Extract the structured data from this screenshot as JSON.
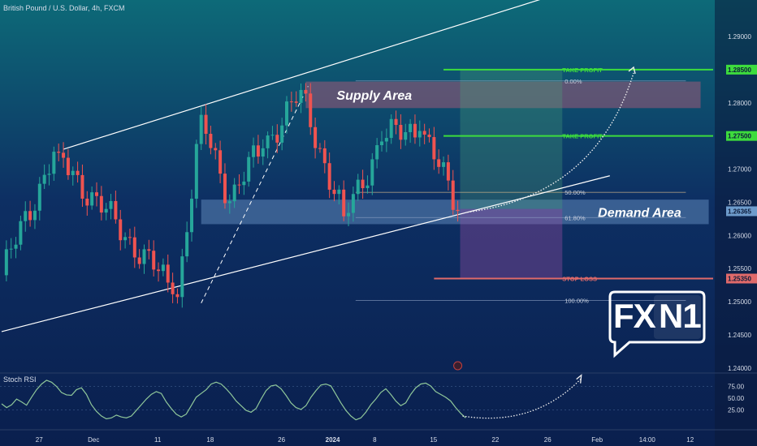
{
  "header": {
    "symbol": "British Pound / U.S. Dollar, 4h, FXCM"
  },
  "indicator": {
    "name": "Stoch RSI"
  },
  "logo": {
    "part1": "FX",
    "part2": "N1"
  },
  "colors": {
    "background": "#0b1a3a",
    "candle_up": "#26a69a",
    "candle_down": "#ef5350",
    "take_profit": "#3ddc3d",
    "stop_loss": "#e06a6a",
    "supply_zone": "#a05a78",
    "demand_zone": "#6e9ccc",
    "stoch_line": "#8fc79a",
    "channel": "#ffffff"
  },
  "chart_data": {
    "type": "candlestick",
    "symbol": "British Pound / U.S. Dollar",
    "timeframe": "4h",
    "source": "FXCM",
    "ylim": [
      1.2395,
      1.2955
    ],
    "grid": false,
    "y_ticks": [
      "1.29000",
      "1.28000",
      "1.27000",
      "1.26500",
      "1.26000",
      "1.25500",
      "1.25000",
      "1.24500",
      "1.24000"
    ],
    "y_tick_values": [
      1.29,
      1.28,
      1.27,
      1.265,
      1.26,
      1.255,
      1.25,
      1.245,
      1.24
    ],
    "x_ticks": [
      "27",
      "Dec",
      "11",
      "18",
      "26",
      "2024",
      "8",
      "15",
      "22",
      "26",
      "Feb",
      "14:00",
      "12"
    ],
    "x_tick_index": [
      8,
      19,
      33,
      44,
      59,
      69,
      79,
      91,
      104,
      115,
      125,
      135,
      145
    ],
    "current_price": "1.26365",
    "price_labels": [
      {
        "text": "1.28500",
        "value": 1.285,
        "color": "#3ddc3d"
      },
      {
        "text": "1.27500",
        "value": 1.275,
        "color": "#3ddc3d"
      },
      {
        "text": "1.26365",
        "value": 1.26365,
        "color": "#6e9ccc"
      },
      {
        "text": "1.25350",
        "value": 1.2535,
        "color": "#e06a6a"
      }
    ],
    "key_points": [
      {
        "label": "start",
        "i": 0,
        "close": 1.254
      },
      {
        "label": "high",
        "i": 11,
        "close": 1.2725
      },
      {
        "label": "low",
        "i": 37,
        "close": 1.251
      },
      {
        "label": "high",
        "i": 42,
        "close": 1.2775
      },
      {
        "label": "low",
        "i": 48,
        "close": 1.2655
      },
      {
        "label": "high",
        "i": 55,
        "close": 1.2735
      },
      {
        "label": "high",
        "i": 63,
        "close": 1.2815
      },
      {
        "label": "low",
        "i": 72,
        "close": 1.2625
      },
      {
        "label": "high",
        "i": 80,
        "close": 1.2745
      },
      {
        "label": "high",
        "i": 88,
        "close": 1.2765
      },
      {
        "label": "low",
        "i": 96,
        "close": 1.264
      }
    ],
    "channel": {
      "lower": [
        [
          0,
          1.2455
        ],
        [
          128,
          1.269
        ]
      ],
      "upper": [
        [
          13,
          1.273
        ],
        [
          133,
          1.3
        ]
      ]
    },
    "zones": [
      {
        "name": "Supply Area",
        "from": 64,
        "to": 150,
        "top": 1.2832,
        "bottom": 1.2792
      },
      {
        "name": "Demand Area",
        "from": 42,
        "to": 150,
        "top": 1.2654,
        "bottom": 1.2617
      }
    ],
    "levels": [
      {
        "label": "TAKE PROFIT",
        "value": 1.285,
        "from": 93,
        "to": 150
      },
      {
        "label": "TAKE PROFIT",
        "value": 1.275,
        "from": 93,
        "to": 150
      },
      {
        "label": "STOP LOSS",
        "value": 1.2535,
        "from": 91,
        "to": 150
      }
    ],
    "fibonacci": [
      {
        "label": "0.00%",
        "value": 1.2833
      },
      {
        "label": "50.00%",
        "value": 1.2665
      },
      {
        "label": "61.80%",
        "value": 1.2627
      },
      {
        "label": "100.00%",
        "value": 1.2502
      }
    ],
    "stoch_rsi": {
      "name": "Stoch RSI",
      "y_ticks": [
        "75.00",
        "50.00",
        "25.00"
      ],
      "y_tick_values": [
        75,
        50,
        25
      ],
      "ylim": [
        0,
        100
      ],
      "values": [
        38,
        30,
        36,
        48,
        42,
        35,
        52,
        68,
        80,
        88,
        84,
        75,
        62,
        57,
        56,
        68,
        72,
        58,
        36,
        22,
        12,
        6,
        8,
        14,
        10,
        8,
        12,
        24,
        36,
        48,
        58,
        64,
        60,
        42,
        28,
        16,
        10,
        16,
        34,
        52,
        60,
        68,
        80,
        84,
        80,
        70,
        58,
        44,
        34,
        24,
        20,
        28,
        48,
        66,
        76,
        78,
        70,
        56,
        40,
        30,
        26,
        34,
        52,
        66,
        78,
        80,
        76,
        58,
        40,
        24,
        12,
        4,
        8,
        20,
        36,
        48,
        62,
        70,
        58,
        44,
        34,
        40,
        58,
        72,
        80,
        82,
        76,
        64,
        58,
        52,
        44,
        30,
        18,
        8
      ]
    }
  }
}
